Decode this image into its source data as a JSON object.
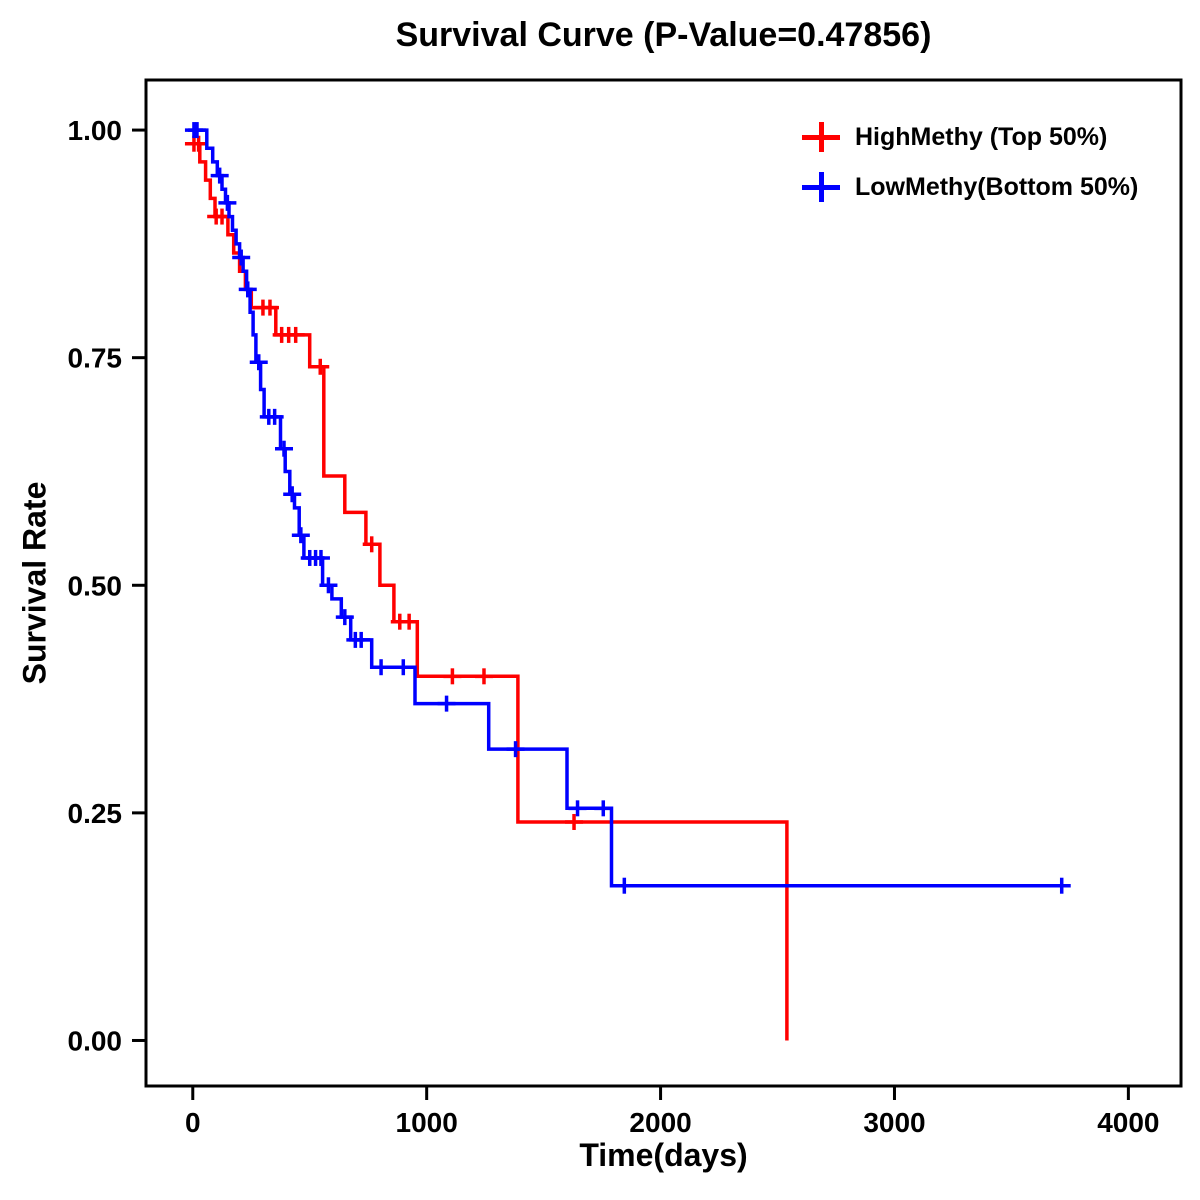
{
  "chart_data": {
    "type": "line",
    "subtype": "kaplan-meier-step",
    "title": "Survival Curve (P-Value=0.47856)",
    "p_value": "0.47856",
    "xlabel": "Time(days)",
    "ylabel": "Survival Rate",
    "xlim": [
      -200,
      4225
    ],
    "ylim": [
      -0.05,
      1.055
    ],
    "grid": false,
    "legend_position": "top-right",
    "xticks": [
      {
        "value": 0,
        "label": "0"
      },
      {
        "value": 1000,
        "label": "1000"
      },
      {
        "value": 2000,
        "label": "2000"
      },
      {
        "value": 3000,
        "label": "3000"
      },
      {
        "value": 4000,
        "label": "4000"
      }
    ],
    "yticks": [
      {
        "value": 0.0,
        "label": "0.00"
      },
      {
        "value": 0.25,
        "label": "0.25"
      },
      {
        "value": 0.5,
        "label": "0.50"
      },
      {
        "value": 0.75,
        "label": "0.75"
      },
      {
        "value": 1.0,
        "label": "1.00"
      }
    ],
    "series": [
      {
        "id": "highmethy",
        "name": "HighMethy (Top 50%)",
        "color": "#FF0000",
        "steps": [
          [
            0,
            0.985
          ],
          [
            30,
            0.965
          ],
          [
            55,
            0.945
          ],
          [
            75,
            0.925
          ],
          [
            95,
            0.905
          ],
          [
            150,
            0.885
          ],
          [
            175,
            0.865
          ],
          [
            200,
            0.845
          ],
          [
            225,
            0.825
          ],
          [
            250,
            0.805
          ],
          [
            355,
            0.775
          ],
          [
            500,
            0.74
          ],
          [
            560,
            0.62
          ],
          [
            650,
            0.58
          ],
          [
            740,
            0.545
          ],
          [
            800,
            0.5
          ],
          [
            860,
            0.46
          ],
          [
            960,
            0.4
          ],
          [
            1390,
            0.24
          ],
          [
            2540,
            0.0
          ]
        ],
        "censors": [
          [
            5,
            0.985
          ],
          [
            25,
            0.985
          ],
          [
            100,
            0.905
          ],
          [
            125,
            0.905
          ],
          [
            300,
            0.805
          ],
          [
            330,
            0.805
          ],
          [
            380,
            0.775
          ],
          [
            410,
            0.775
          ],
          [
            440,
            0.775
          ],
          [
            545,
            0.74
          ],
          [
            765,
            0.545
          ],
          [
            885,
            0.46
          ],
          [
            925,
            0.46
          ],
          [
            1110,
            0.4
          ],
          [
            1245,
            0.4
          ],
          [
            1630,
            0.24
          ]
        ]
      },
      {
        "id": "lowmethy",
        "name": "LowMethy(Bottom 50%)",
        "color": "#0000FF",
        "steps": [
          [
            0,
            1.0
          ],
          [
            60,
            0.98
          ],
          [
            85,
            0.965
          ],
          [
            105,
            0.95
          ],
          [
            125,
            0.935
          ],
          [
            140,
            0.92
          ],
          [
            155,
            0.905
          ],
          [
            170,
            0.89
          ],
          [
            185,
            0.875
          ],
          [
            200,
            0.86
          ],
          [
            215,
            0.845
          ],
          [
            230,
            0.825
          ],
          [
            245,
            0.8
          ],
          [
            258,
            0.775
          ],
          [
            270,
            0.745
          ],
          [
            290,
            0.715
          ],
          [
            305,
            0.685
          ],
          [
            375,
            0.65
          ],
          [
            395,
            0.625
          ],
          [
            415,
            0.6
          ],
          [
            435,
            0.585
          ],
          [
            455,
            0.555
          ],
          [
            475,
            0.53
          ],
          [
            555,
            0.5
          ],
          [
            595,
            0.485
          ],
          [
            635,
            0.465
          ],
          [
            675,
            0.44
          ],
          [
            765,
            0.41
          ],
          [
            950,
            0.37
          ],
          [
            1265,
            0.32
          ],
          [
            1600,
            0.255
          ],
          [
            1790,
            0.17
          ],
          [
            3720,
            0.17
          ]
        ],
        "censors": [
          [
            5,
            1.0
          ],
          [
            18,
            1.0
          ],
          [
            115,
            0.95
          ],
          [
            148,
            0.92
          ],
          [
            207,
            0.86
          ],
          [
            235,
            0.825
          ],
          [
            282,
            0.745
          ],
          [
            325,
            0.685
          ],
          [
            350,
            0.685
          ],
          [
            390,
            0.65
          ],
          [
            425,
            0.6
          ],
          [
            462,
            0.555
          ],
          [
            500,
            0.53
          ],
          [
            525,
            0.53
          ],
          [
            548,
            0.53
          ],
          [
            580,
            0.5
          ],
          [
            650,
            0.465
          ],
          [
            695,
            0.44
          ],
          [
            720,
            0.44
          ],
          [
            805,
            0.41
          ],
          [
            900,
            0.41
          ],
          [
            1085,
            0.37
          ],
          [
            1380,
            0.32
          ],
          [
            1645,
            0.255
          ],
          [
            1755,
            0.255
          ],
          [
            1845,
            0.17
          ],
          [
            3715,
            0.17
          ]
        ]
      }
    ]
  }
}
